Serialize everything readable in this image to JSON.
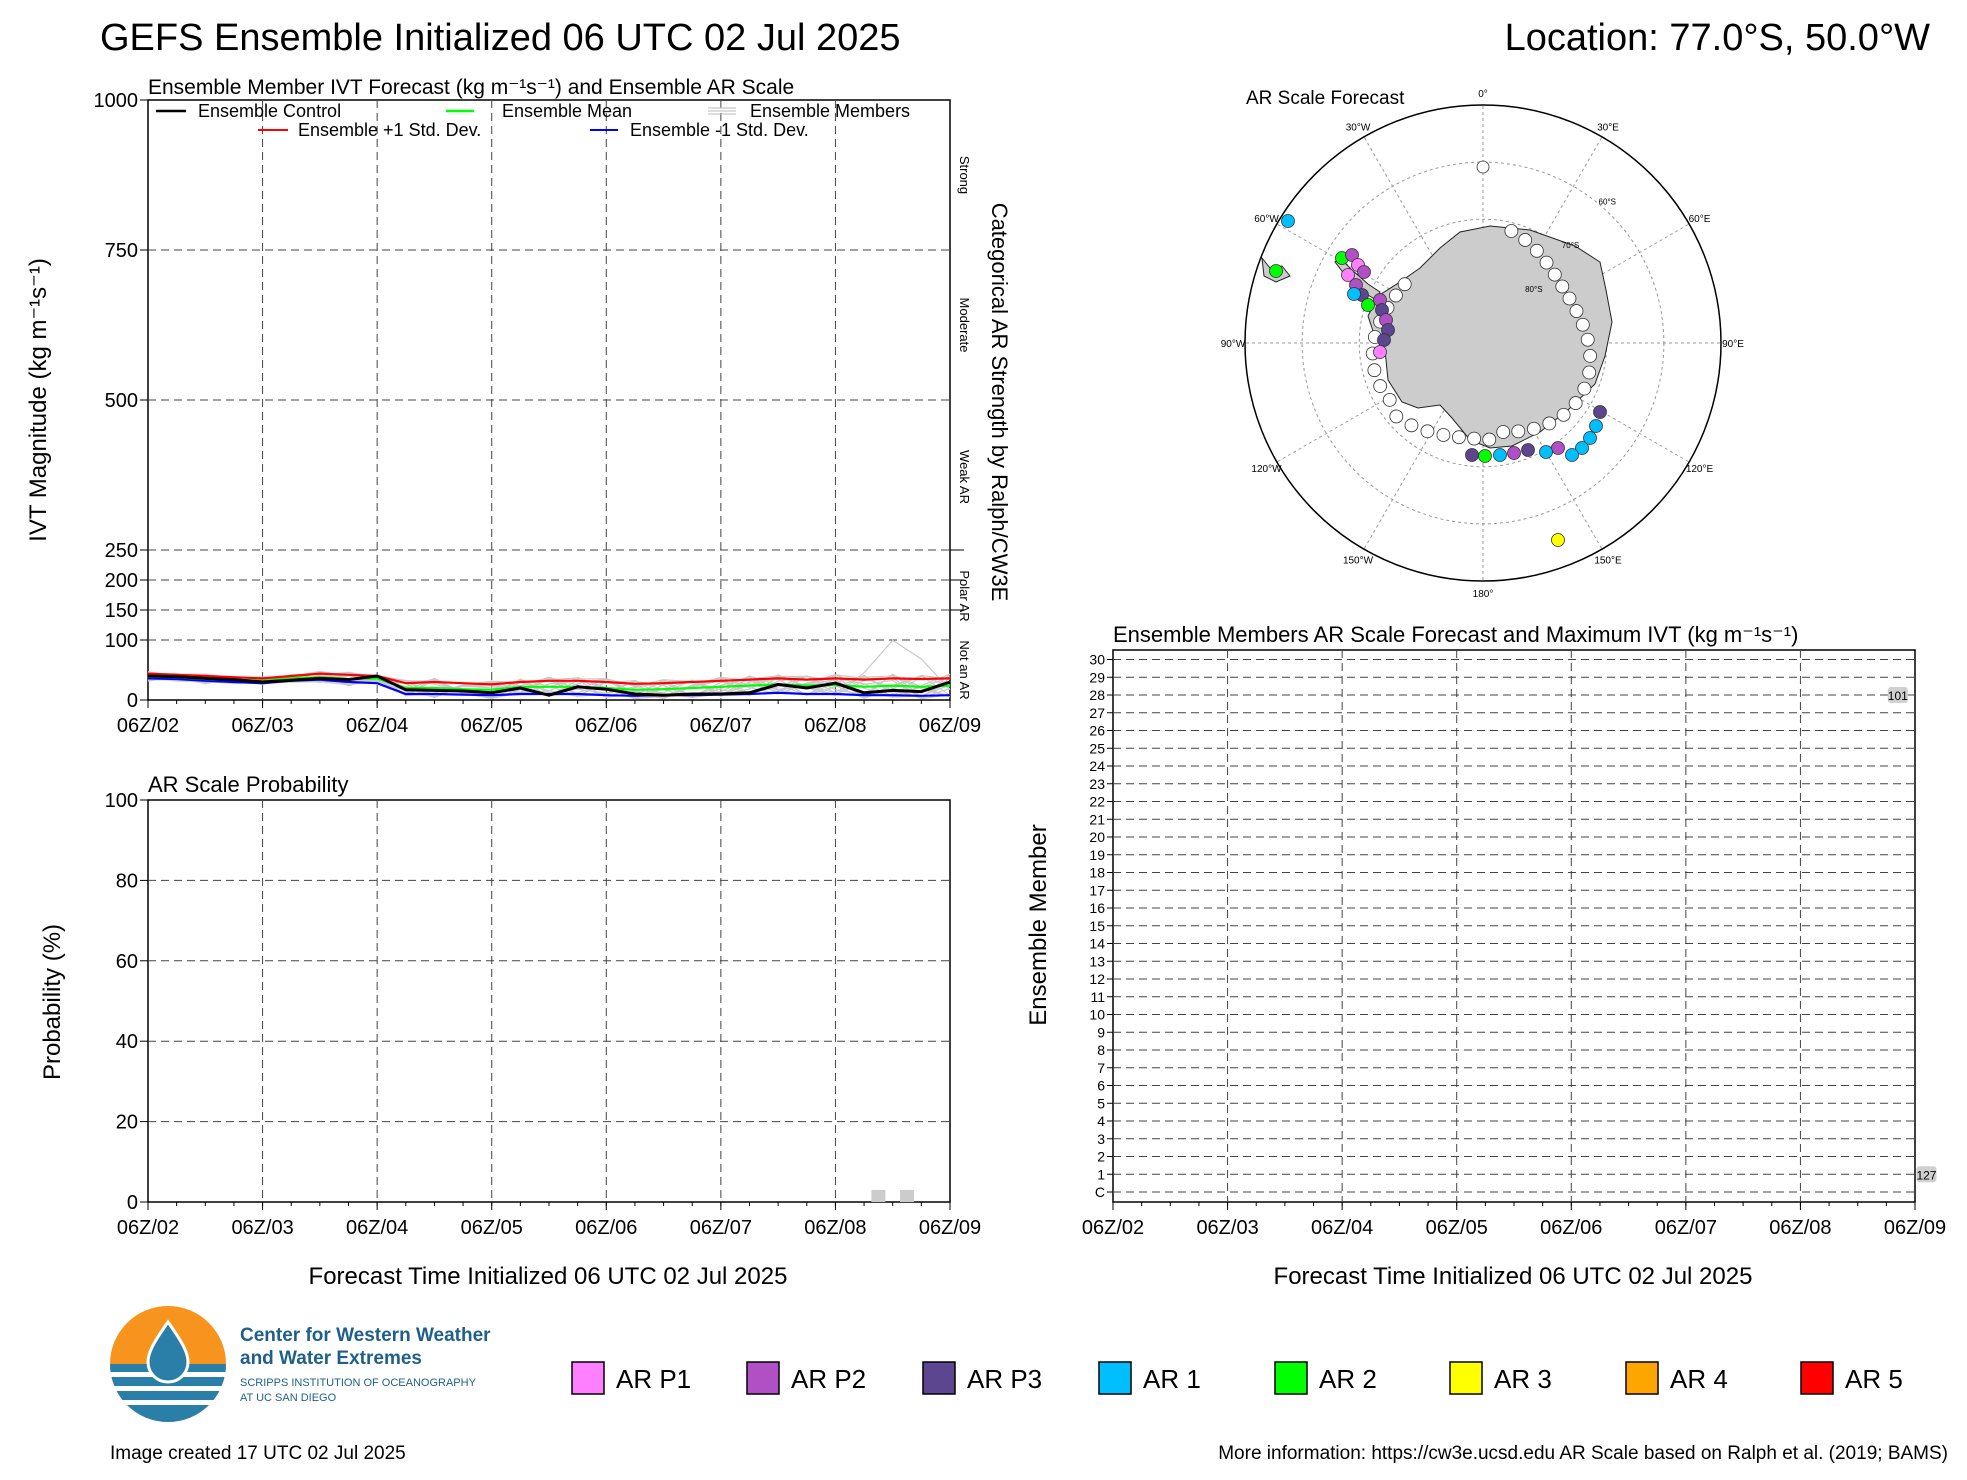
{
  "header": {
    "title": "GEFS Ensemble Initialized 06 UTC 02 Jul 2025",
    "location": "Location: 77.0°S, 50.0°W"
  },
  "ivt_panel": {
    "title": "Ensemble Member IVT Forecast (kg m⁻¹s⁻¹) and Ensemble AR Scale",
    "ylabel": "IVT Magnitude (kg m⁻¹s⁻¹)",
    "right_axis_label": "Categorical AR Strength by Ralph/CW3E",
    "categories": [
      "Strong",
      "Moderate",
      "Weak AR",
      "Polar AR",
      "Not an AR"
    ],
    "legend": {
      "control": "Ensemble Control",
      "mean": "Ensemble Mean",
      "members": "Ensemble Members",
      "plus_std": "Ensemble +1 Std. Dev.",
      "minus_std": "Ensemble -1 Std. Dev."
    },
    "ytick_labels": [
      "0",
      "100",
      "150",
      "200",
      "250",
      "500",
      "750",
      "1000"
    ],
    "xtick_labels": [
      "06Z/02",
      "06Z/03",
      "06Z/04",
      "06Z/05",
      "06Z/06",
      "06Z/07",
      "06Z/08",
      "06Z/09"
    ]
  },
  "prob_panel": {
    "title": "AR Scale Probability",
    "ylabel": "Probability (%)",
    "xlabel": "Forecast Time Initialized 06 UTC 02 Jul 2025",
    "ytick_labels": [
      "0",
      "20",
      "40",
      "60",
      "80",
      "100"
    ],
    "xtick_labels": [
      "06Z/02",
      "06Z/03",
      "06Z/04",
      "06Z/05",
      "06Z/06",
      "06Z/07",
      "06Z/08",
      "06Z/09"
    ]
  },
  "map_panel": {
    "title": "AR Scale Forecast",
    "lon_labels": [
      "0°",
      "30°E",
      "60°E",
      "90°E",
      "120°E",
      "150°E",
      "180°",
      "150°W",
      "120°W",
      "90°W",
      "60°W",
      "30°W"
    ],
    "lat_labels": [
      "60°S",
      "70°S",
      "80°S"
    ]
  },
  "members_panel": {
    "title": "Ensemble Members AR Scale Forecast and Maximum IVT (kg m⁻¹s⁻¹)",
    "ylabel": "Ensemble Member",
    "xlabel": "Forecast Time Initialized 06 UTC 02 Jul 2025",
    "member_labels": [
      "C",
      "1",
      "2",
      "3",
      "4",
      "5",
      "6",
      "7",
      "8",
      "9",
      "10",
      "11",
      "12",
      "13",
      "14",
      "15",
      "16",
      "17",
      "18",
      "19",
      "20",
      "21",
      "22",
      "23",
      "24",
      "25",
      "26",
      "27",
      "28",
      "29",
      "30"
    ],
    "xtick_labels": [
      "06Z/02",
      "06Z/03",
      "06Z/04",
      "06Z/05",
      "06Z/06",
      "06Z/07",
      "06Z/08",
      "06Z/09"
    ],
    "annotations": [
      {
        "member": "28",
        "time": "06Z/08+0.85",
        "value": "101"
      },
      {
        "member": "1",
        "time": "06Z/08+1.1",
        "value": "127"
      }
    ]
  },
  "legend_scale": [
    {
      "label": "AR P1",
      "color": "#ff80ff"
    },
    {
      "label": "AR P2",
      "color": "#b14fc5"
    },
    {
      "label": "AR P3",
      "color": "#5b468f"
    },
    {
      "label": "AR 1",
      "color": "#00bfff"
    },
    {
      "label": "AR 2",
      "color": "#00ff00"
    },
    {
      "label": "AR 3",
      "color": "#ffff00"
    },
    {
      "label": "AR 4",
      "color": "#ffa500"
    },
    {
      "label": "AR 5",
      "color": "#ff0000"
    }
  ],
  "logo": {
    "line1": "Center for Western Weather",
    "line2": "and Water Extremes",
    "line3": "SCRIPPS INSTITUTION OF OCEANOGRAPHY",
    "line4": "AT UC SAN DIEGO"
  },
  "footer": {
    "created": "Image created 17 UTC 02 Jul 2025",
    "info": "More information: https://cw3e.ucsd.edu AR Scale based on Ralph et al. (2019; BAMS)"
  },
  "chart_data": [
    {
      "type": "line",
      "title": "Ensemble Member IVT Forecast (kg m⁻¹s⁻¹) and Ensemble AR Scale",
      "xlabel": "",
      "ylabel": "IVT Magnitude (kg m⁻¹s⁻¹)",
      "x_range_days": [
        0,
        7
      ],
      "y_scale": "piecewise: 0-250 expanded, 250-1000 compressed",
      "ylim": [
        0,
        1000
      ],
      "grid": true,
      "legend_position": "top",
      "x": [
        0,
        0.25,
        0.5,
        0.75,
        1,
        1.25,
        1.5,
        1.75,
        2,
        2.25,
        2.5,
        2.75,
        3,
        3.25,
        3.5,
        3.75,
        4,
        4.25,
        4.5,
        4.75,
        5,
        5.25,
        5.5,
        5.75,
        6,
        6.25,
        6.5,
        6.75,
        7
      ],
      "series": [
        {
          "name": "Ensemble Control",
          "color": "#000000",
          "values": [
            40,
            39,
            36,
            34,
            30,
            33,
            36,
            34,
            40,
            17,
            16,
            15,
            12,
            20,
            8,
            22,
            18,
            10,
            8,
            10,
            10,
            12,
            26,
            20,
            28,
            12,
            16,
            14,
            30
          ]
        },
        {
          "name": "Ensemble Mean",
          "color": "#00ff00",
          "values": [
            39,
            38,
            35,
            34,
            32,
            36,
            38,
            35,
            36,
            20,
            20,
            18,
            17,
            22,
            22,
            22,
            20,
            17,
            18,
            20,
            22,
            24,
            26,
            24,
            25,
            22,
            24,
            22,
            24
          ]
        },
        {
          "name": "Ensemble +1 Std. Dev.",
          "color": "#ff0000",
          "values": [
            44,
            42,
            40,
            38,
            36,
            40,
            44,
            42,
            40,
            28,
            30,
            28,
            26,
            30,
            32,
            32,
            30,
            27,
            28,
            30,
            32,
            34,
            36,
            34,
            36,
            34,
            36,
            35,
            36
          ]
        },
        {
          "name": "Ensemble -1 Std. Dev.",
          "color": "#0000ff",
          "values": [
            36,
            35,
            32,
            30,
            28,
            32,
            34,
            30,
            28,
            10,
            10,
            9,
            8,
            10,
            10,
            10,
            8,
            7,
            8,
            8,
            9,
            10,
            12,
            10,
            10,
            8,
            8,
            7,
            8
          ]
        }
      ]
    },
    {
      "type": "bar",
      "title": "AR Scale Probability",
      "xlabel": "Forecast Time Initialized 06 UTC 02 Jul 2025",
      "ylabel": "Probability (%)",
      "ylim": [
        0,
        100
      ],
      "x_range_days": [
        0,
        7
      ],
      "bars": [
        {
          "x": 6.375,
          "value": 3,
          "category": "Not an AR / Polar"
        },
        {
          "x": 6.625,
          "value": 3,
          "category": "Not an AR / Polar"
        }
      ]
    }
  ]
}
